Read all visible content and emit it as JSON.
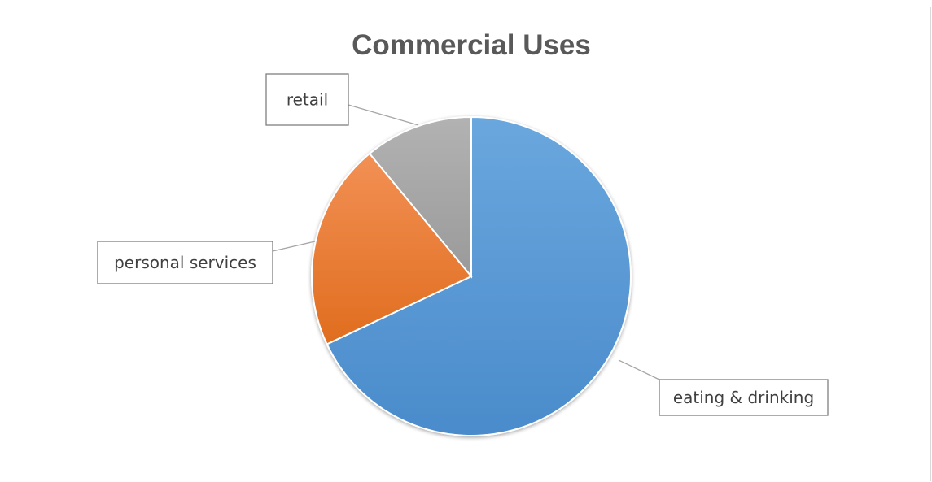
{
  "chart_data": {
    "type": "pie",
    "title": "Commercial Uses",
    "categories": [
      "eating & drinking",
      "personal services",
      "retail"
    ],
    "values": [
      68,
      21,
      11
    ],
    "colors": [
      "#5b9bd5",
      "#ed7d31",
      "#a5a5a5"
    ],
    "start_angle_deg": 0,
    "direction": "clockwise",
    "legend": "none",
    "data_labels": "category-name-outside-with-leader-lines"
  }
}
